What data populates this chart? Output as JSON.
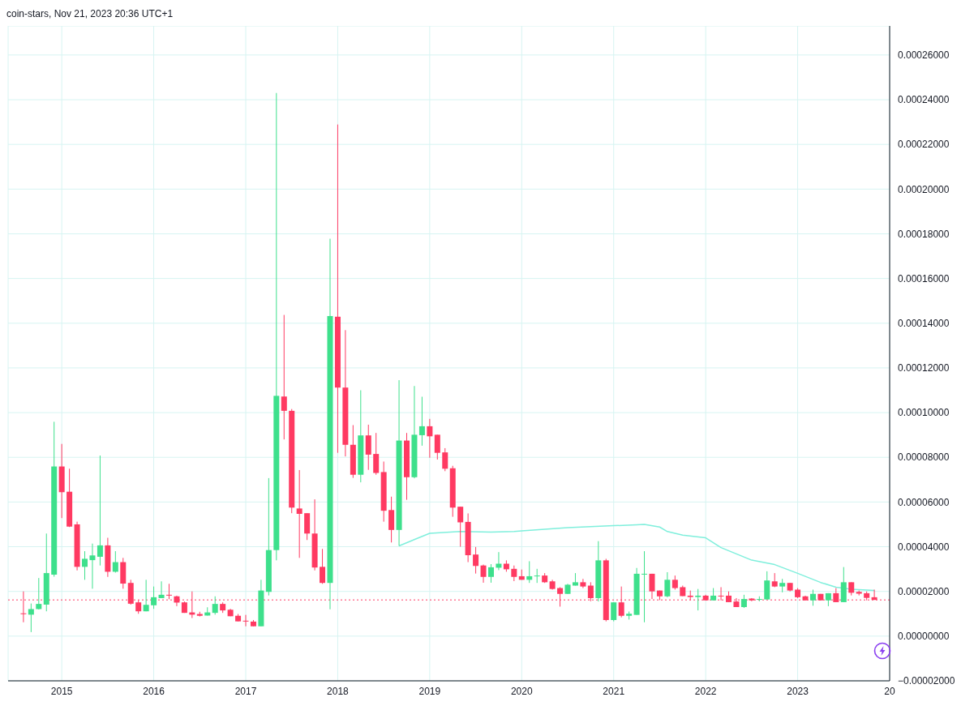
{
  "chart_data": {
    "type": "candlestick",
    "annotations": [
      "coin-stars, Nov 21, 2023 20:36 UTC+1"
    ],
    "x": [
      "2014-08",
      "2014-09",
      "2014-10",
      "2014-11",
      "2014-12",
      "2015-01",
      "2015-02",
      "2015-03",
      "2015-04",
      "2015-05",
      "2015-06",
      "2015-07",
      "2015-08",
      "2015-09",
      "2015-10",
      "2015-11",
      "2015-12",
      "2016-01",
      "2016-02",
      "2016-03",
      "2016-04",
      "2016-05",
      "2016-06",
      "2016-07",
      "2016-08",
      "2016-09",
      "2016-10",
      "2016-11",
      "2016-12",
      "2017-01",
      "2017-02",
      "2017-03",
      "2017-04",
      "2017-05",
      "2017-06",
      "2017-07",
      "2017-08",
      "2017-09",
      "2017-10",
      "2017-11",
      "2017-12",
      "2018-01",
      "2018-02",
      "2018-03",
      "2018-04",
      "2018-05",
      "2018-06",
      "2018-07",
      "2018-08",
      "2018-09",
      "2018-10",
      "2018-11",
      "2018-12",
      "2019-01",
      "2019-02",
      "2019-03",
      "2019-04",
      "2019-05",
      "2019-06",
      "2019-07",
      "2019-08",
      "2019-09",
      "2019-10",
      "2019-11",
      "2019-12",
      "2020-01",
      "2020-02",
      "2020-03",
      "2020-04",
      "2020-05",
      "2020-06",
      "2020-07",
      "2020-08",
      "2020-09",
      "2020-10",
      "2020-11",
      "2020-12",
      "2021-01",
      "2021-02",
      "2021-03",
      "2021-04",
      "2021-05",
      "2021-06",
      "2021-07",
      "2021-08",
      "2021-09",
      "2021-10",
      "2021-11",
      "2021-12",
      "2022-01",
      "2022-02",
      "2022-03",
      "2022-04",
      "2022-05",
      "2022-06",
      "2022-07",
      "2022-08",
      "2022-09",
      "2022-10",
      "2022-11",
      "2022-12",
      "2023-01",
      "2023-02",
      "2023-03",
      "2023-04",
      "2023-05",
      "2023-06",
      "2023-07",
      "2023-08",
      "2023-09",
      "2023-10",
      "2023-11"
    ],
    "ohlc": [
      [
        1.02e-05,
        2e-05,
        6.2e-06,
        1e-05
      ],
      [
        9.6e-06,
        1.46e-05,
        1.8e-06,
        1.21e-05
      ],
      [
        1.21e-05,
        2.6e-05,
        1.19e-05,
        1.44e-05
      ],
      [
        1.41e-05,
        4.59e-05,
        1.11e-05,
        2.82e-05
      ],
      [
        2.75e-05,
        9.59e-05,
        2.66e-05,
        7.59e-05
      ],
      [
        7.59e-05,
        8.6e-05,
        5.28e-05,
        6.44e-05
      ],
      [
        6.46e-05,
        7.49e-05,
        4.88e-05,
        4.9e-05
      ],
      [
        5e-05,
        5.12e-05,
        2.94e-05,
        3.1e-05
      ],
      [
        3.1e-05,
        3.8e-05,
        2.52e-05,
        3.46e-05
      ],
      [
        3.4e-05,
        4.14e-05,
        2.12e-05,
        3.61e-05
      ],
      [
        3.55e-05,
        8.08e-05,
        3.16e-05,
        4.06e-05
      ],
      [
        4.06e-05,
        4.4e-05,
        2.65e-05,
        2.88e-05
      ],
      [
        2.88e-05,
        3.8e-05,
        2.84e-05,
        3.31e-05
      ],
      [
        3.31e-05,
        3.5e-05,
        2.12e-05,
        2.35e-05
      ],
      [
        2.38e-05,
        2.52e-05,
        1.41e-05,
        1.45e-05
      ],
      [
        1.51e-05,
        1.6e-05,
        1e-05,
        1.11e-05
      ],
      [
        1.11e-05,
        2.52e-05,
        1.11e-05,
        1.4e-05
      ],
      [
        1.38e-05,
        2.22e-05,
        1.22e-05,
        1.74e-05
      ],
      [
        1.7e-05,
        2.45e-05,
        1.7e-05,
        1.85e-05
      ],
      [
        1.85e-05,
        2.34e-05,
        1.65e-05,
        1.83e-05
      ],
      [
        1.78e-05,
        1.81e-05,
        1.34e-05,
        1.5e-05
      ],
      [
        1.51e-05,
        1.55e-05,
        1.04e-05,
        1.04e-05
      ],
      [
        1.06e-05,
        2e-05,
        8.1e-06,
        9.6e-06
      ],
      [
        9.9e-06,
        1.09e-05,
        8.8e-06,
        9.1e-06
      ],
      [
        9.2e-06,
        1.29e-05,
        9.2e-06,
        1.06e-05
      ],
      [
        1.04e-05,
        1.78e-05,
        9.6e-06,
        1.44e-05
      ],
      [
        1.44e-05,
        1.51e-05,
        1.04e-05,
        1.15e-05
      ],
      [
        1.18e-05,
        1.22e-05,
        8.9e-06,
        8.9e-06
      ],
      [
        9.1e-06,
        9.9e-06,
        6.6e-06,
        6.6e-06
      ],
      [
        6.9e-06,
        9.5e-06,
        4.4e-06,
        6.8e-06
      ],
      [
        6.5e-06,
        7.2e-06,
        4.4e-06,
        4.4e-06
      ],
      [
        4.4e-06,
        2.52e-05,
        4.4e-06,
        2.04e-05
      ],
      [
        1.98e-05,
        7.07e-05,
        1.82e-05,
        3.85e-05
      ],
      [
        3.85e-05,
        0.000243,
        3.39e-05,
        0.0001075
      ],
      [
        0.0001072,
        0.0001437,
        8.8e-05,
        0.0001008
      ],
      [
        0.0001008,
        0.0001016,
        5.5e-05,
        5.75e-05
      ],
      [
        5.71e-05,
        7.43e-05,
        3.5e-05,
        5.47e-05
      ],
      [
        5.5e-05,
        5.5e-05,
        4.3e-05,
        4.59e-05
      ],
      [
        4.59e-05,
        6.12e-05,
        2.94e-05,
        3.07e-05
      ],
      [
        3.1e-05,
        3.9e-05,
        2.34e-05,
        2.38e-05
      ],
      [
        2.38e-05,
        0.0001778,
        1.2e-05,
        0.0001432
      ],
      [
        0.0001429,
        0.0002289,
        8.2e-05,
        0.0001112
      ],
      [
        0.0001112,
        0.0001369,
        8.04e-05,
        8.56e-05
      ],
      [
        8.56e-05,
        9.44e-05,
        7.08e-05,
        7.22e-05
      ],
      [
        7.22e-05,
        0.00011,
        6.88e-05,
        8.98e-05
      ],
      [
        8.98e-05,
        9.46e-05,
        7.44e-05,
        8.12e-05
      ],
      [
        8.15e-05,
        9.09e-05,
        7.22e-05,
        7.3e-05
      ],
      [
        7.34e-05,
        7.81e-05,
        5.12e-05,
        5.61e-05
      ],
      [
        5.64e-05,
        6.24e-05,
        4.19e-05,
        4.75e-05
      ],
      [
        4.75e-05,
        0.0001145,
        4.04e-05,
        8.75e-05
      ],
      [
        8.75e-05,
        9.09e-05,
        6.1e-05,
        7.11e-05
      ],
      [
        7.11e-05,
        0.0001119,
        7.06e-05,
        9.01e-05
      ],
      [
        8.99e-05,
        0.0001071,
        8.52e-05,
        9.39e-05
      ],
      [
        9.39e-05,
        9.72e-05,
        7.98e-05,
        8.94e-05
      ],
      [
        9.01e-05,
        9.01e-05,
        7.9e-05,
        8.2e-05
      ],
      [
        8.22e-05,
        8.41e-05,
        7.38e-05,
        7.49e-05
      ],
      [
        7.51e-05,
        7.62e-05,
        5.34e-05,
        5.75e-05
      ],
      [
        5.79e-05,
        5.79e-05,
        4e-05,
        5.09e-05
      ],
      [
        5.11e-05,
        5.49e-05,
        3.31e-05,
        3.62e-05
      ],
      [
        3.65e-05,
        3.99e-05,
        2.8e-05,
        3.14e-05
      ],
      [
        3.16e-05,
        3.2e-05,
        2.39e-05,
        2.65e-05
      ],
      [
        2.65e-05,
        3.22e-05,
        2.39e-05,
        3.08e-05
      ],
      [
        3.06e-05,
        3.76e-05,
        2.95e-05,
        3.24e-05
      ],
      [
        3.24e-05,
        3.39e-05,
        2.88e-05,
        2.99e-05
      ],
      [
        3.01e-05,
        3.16e-05,
        2.46e-05,
        2.65e-05
      ],
      [
        2.68e-05,
        2.98e-05,
        2.52e-05,
        2.52e-05
      ],
      [
        2.52e-05,
        3.35e-05,
        2.38e-05,
        2.68e-05
      ],
      [
        2.69e-05,
        3.01e-05,
        2.38e-05,
        2.71e-05
      ],
      [
        2.71e-05,
        2.82e-05,
        2.38e-05,
        2.41e-05
      ],
      [
        2.45e-05,
        2.52e-05,
        2.08e-05,
        2.11e-05
      ],
      [
        2.15e-05,
        2.19e-05,
        1.32e-05,
        1.89e-05
      ],
      [
        1.89e-05,
        2.34e-05,
        1.89e-05,
        2.3e-05
      ],
      [
        2.26e-05,
        2.82e-05,
        2.26e-05,
        2.41e-05
      ],
      [
        2.41e-05,
        2.56e-05,
        2.15e-05,
        2.22e-05
      ],
      [
        2.26e-05,
        2.41e-05,
        1.56e-05,
        1.7e-05
      ],
      [
        1.7e-05,
        4.25e-05,
        1.55e-05,
        3.39e-05
      ],
      [
        3.39e-05,
        3.46e-05,
        6.6e-06,
        7.2e-06
      ],
      [
        7.2e-06,
        1.51e-05,
        6.6e-06,
        1.51e-05
      ],
      [
        1.51e-05,
        2.22e-05,
        8.4e-06,
        9.1e-06
      ],
      [
        9.1e-06,
        1.1e-05,
        7.4e-06,
        1e-05
      ],
      [
        9.5e-06,
        3.05e-05,
        9.5e-06,
        2.79e-05
      ],
      [
        2.76e-05,
        3.8e-05,
        6.2e-06,
        2.79e-05
      ],
      [
        2.79e-05,
        2.79e-05,
        1.66e-05,
        2e-05
      ],
      [
        2.04e-05,
        2.04e-05,
        1.61e-05,
        1.78e-05
      ],
      [
        1.78e-05,
        2.86e-05,
        1.74e-05,
        2.52e-05
      ],
      [
        2.52e-05,
        2.71e-05,
        2.08e-05,
        2.15e-05
      ],
      [
        2.19e-05,
        2.26e-05,
        1.79e-05,
        1.79e-05
      ],
      [
        1.81e-05,
        2.04e-05,
        1.6e-05,
        1.75e-05
      ],
      [
        1.75e-05,
        2.11e-05,
        1.15e-05,
        1.81e-05
      ],
      [
        1.81e-05,
        1.85e-05,
        1.6e-05,
        1.6e-05
      ],
      [
        1.6e-05,
        2.15e-05,
        1.6e-05,
        1.81e-05
      ],
      [
        1.81e-05,
        2.19e-05,
        1.6e-05,
        1.78e-05
      ],
      [
        1.81e-05,
        2e-05,
        1.52e-05,
        1.52e-05
      ],
      [
        1.55e-05,
        1.7e-05,
        1.3e-05,
        1.3e-05
      ],
      [
        1.3e-05,
        1.85e-05,
        1.26e-05,
        1.66e-05
      ],
      [
        1.68e-05,
        1.7e-05,
        1.56e-05,
        1.6e-05
      ],
      [
        1.64e-05,
        1.78e-05,
        1.56e-05,
        1.66e-05
      ],
      [
        1.64e-05,
        2.9e-05,
        1.64e-05,
        2.49e-05
      ],
      [
        2.45e-05,
        2.82e-05,
        2.19e-05,
        2.22e-05
      ],
      [
        2.22e-05,
        2.56e-05,
        1.96e-05,
        2.38e-05
      ],
      [
        2.38e-05,
        2.38e-05,
        2e-05,
        2.04e-05
      ],
      [
        2.08e-05,
        2.15e-05,
        1.7e-05,
        1.74e-05
      ],
      [
        1.78e-05,
        1.81e-05,
        1.6e-05,
        1.6e-05
      ],
      [
        1.6e-05,
        2.08e-05,
        1.36e-05,
        1.89e-05
      ],
      [
        1.89e-05,
        1.89e-05,
        1.6e-05,
        1.6e-05
      ],
      [
        1.6e-05,
        1.92e-05,
        1.34e-05,
        1.92e-05
      ],
      [
        1.92e-05,
        2.15e-05,
        1.52e-05,
        1.52e-05
      ],
      [
        1.52e-05,
        3.09e-05,
        1.52e-05,
        2.41e-05
      ],
      [
        2.41e-05,
        2.41e-05,
        1.82e-05,
        1.94e-05
      ],
      [
        1.98e-05,
        2.04e-05,
        1.82e-05,
        1.9e-05
      ],
      [
        1.92e-05,
        2e-05,
        1.6e-05,
        1.71e-05
      ],
      [
        1.74e-05,
        2.08e-05,
        1.62e-05,
        1.62e-05
      ]
    ],
    "colors": [
      "#ff3a62",
      "#3ee08c",
      "#3ee08c",
      "#3ee08c",
      "#3ee08c",
      "#ff3a62",
      "#ff3a62",
      "#ff3a62",
      "#3ee08c",
      "#3ee08c",
      "#3ee08c",
      "#ff3a62",
      "#3ee08c",
      "#ff3a62",
      "#ff3a62",
      "#ff3a62",
      "#3ee08c",
      "#3ee08c",
      "#3ee08c",
      "#ff3a62",
      "#ff3a62",
      "#ff3a62",
      "#ff3a62",
      "#ff3a62",
      "#3ee08c",
      "#3ee08c",
      "#ff3a62",
      "#ff3a62",
      "#ff3a62",
      "#ff3a62",
      "#ff3a62",
      "#3ee08c",
      "#3ee08c",
      "#3ee08c",
      "#ff3a62",
      "#ff3a62",
      "#ff3a62",
      "#ff3a62",
      "#ff3a62",
      "#ff3a62",
      "#3ee08c",
      "#ff3a62",
      "#ff3a62",
      "#ff3a62",
      "#3ee08c",
      "#ff3a62",
      "#ff3a62",
      "#ff3a62",
      "#ff3a62",
      "#3ee08c",
      "#ff3a62",
      "#3ee08c",
      "#3ee08c",
      "#ff3a62",
      "#ff3a62",
      "#ff3a62",
      "#ff3a62",
      "#ff3a62",
      "#ff3a62",
      "#ff3a62",
      "#ff3a62",
      "#3ee08c",
      "#3ee08c",
      "#ff3a62",
      "#ff3a62",
      "#ff3a62",
      "#3ee08c",
      "#3ee08c",
      "#ff3a62",
      "#ff3a62",
      "#ff3a62",
      "#3ee08c",
      "#3ee08c",
      "#ff3a62",
      "#ff3a62",
      "#3ee08c",
      "#ff3a62",
      "#3ee08c",
      "#ff3a62",
      "#3ee08c",
      "#3ee08c",
      "#3ee08c",
      "#ff3a62",
      "#ff3a62",
      "#3ee08c",
      "#ff3a62",
      "#ff3a62",
      "#ff3a62",
      "#3ee08c",
      "#ff3a62",
      "#3ee08c",
      "#ff3a62",
      "#ff3a62",
      "#ff3a62",
      "#3ee08c",
      "#ff3a62",
      "#3ee08c",
      "#3ee08c",
      "#ff3a62",
      "#3ee08c",
      "#ff3a62",
      "#ff3a62",
      "#ff3a62",
      "#3ee08c",
      "#ff3a62",
      "#3ee08c",
      "#ff3a62",
      "#3ee08c",
      "#ff3a62",
      "#ff3a62",
      "#ff3a62",
      "#ff3a62"
    ],
    "series": [
      {
        "type": "line",
        "color": "#7fefdc",
        "x": [
          "2018-09",
          "2019-01",
          "2019-05",
          "2019-09",
          "2019-12",
          "2020-01",
          "2020-07",
          "2021-01",
          "2021-04",
          "2021-05",
          "2021-07",
          "2021-08",
          "2021-10",
          "2022-01",
          "2022-03",
          "2022-07",
          "2022-10",
          "2023-01",
          "2023-04",
          "2023-06",
          "2023-08",
          "2023-11"
        ],
        "values": [
          4.04e-05,
          4.6e-05,
          4.68e-05,
          4.65e-05,
          4.68e-05,
          4.71e-05,
          4.85e-05,
          4.94e-05,
          4.98e-05,
          5e-05,
          4.88e-05,
          4.68e-05,
          4.52e-05,
          4.4e-05,
          3.96e-05,
          3.4e-05,
          3.2e-05,
          2.81e-05,
          2.4e-05,
          2.19e-05,
          2.1e-05,
          2.04e-05
        ]
      }
    ],
    "xlim": [
      "2014-06",
      "2024-01"
    ],
    "xticks": [
      {
        "value": "2015-01",
        "label": "2015"
      },
      {
        "value": "2016-01",
        "label": "2016"
      },
      {
        "value": "2017-01",
        "label": "2017"
      },
      {
        "value": "2018-01",
        "label": "2018"
      },
      {
        "value": "2019-01",
        "label": "2019"
      },
      {
        "value": "2020-01",
        "label": "2020"
      },
      {
        "value": "2021-01",
        "label": "2021"
      },
      {
        "value": "2022-01",
        "label": "2022"
      },
      {
        "value": "2023-01",
        "label": "2023"
      },
      {
        "value": "2024-01",
        "label": "20"
      }
    ],
    "ylim": [
      -2e-05,
      0.000273
    ],
    "yticks": [
      {
        "value": -2e-05,
        "label": "−0.00002000"
      },
      {
        "value": 0,
        "label": "0.00000000"
      },
      {
        "value": 2e-05,
        "label": "0.00002000"
      },
      {
        "value": 4e-05,
        "label": "0.00004000"
      },
      {
        "value": 6e-05,
        "label": "0.00006000"
      },
      {
        "value": 8e-05,
        "label": "0.00008000"
      },
      {
        "value": 0.0001,
        "label": "0.00010000"
      },
      {
        "value": 0.00012,
        "label": "0.00012000"
      },
      {
        "value": 0.00014,
        "label": "0.00014000"
      },
      {
        "value": 0.00016,
        "label": "0.00016000"
      },
      {
        "value": 0.00018,
        "label": "0.00018000"
      },
      {
        "value": 0.0002,
        "label": "0.00020000"
      },
      {
        "value": 0.00022,
        "label": "0.00022000"
      },
      {
        "value": 0.00024,
        "label": "0.00024000"
      },
      {
        "value": 0.00026,
        "label": "0.00026000"
      }
    ],
    "grid": true,
    "ref_lines": [
      {
        "axis": "y",
        "value": 1.62e-05,
        "color": "#ff3a62",
        "line_style": "dotted"
      }
    ]
  }
}
